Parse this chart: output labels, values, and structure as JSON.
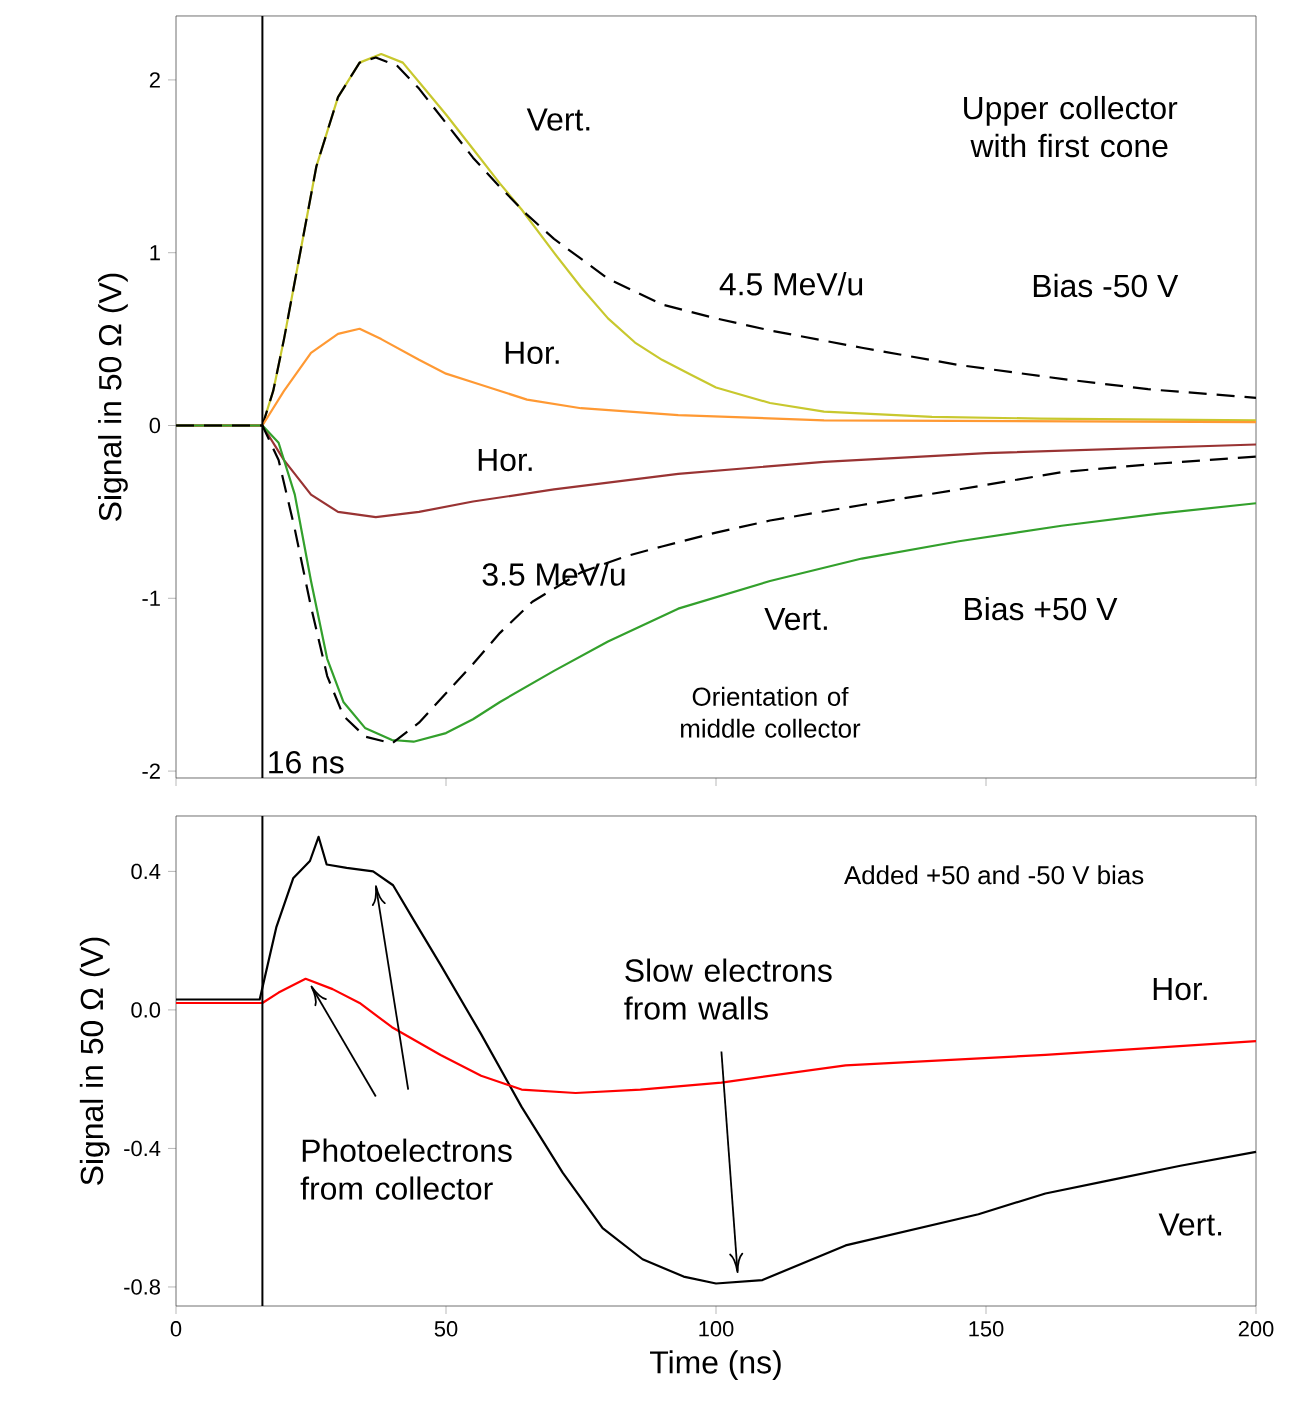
{
  "chart_data": [
    {
      "type": "line",
      "ylabel": "Signal in 50 Ω (V)",
      "xlim": [
        0,
        200
      ],
      "ylim": [
        -2.04,
        2.37
      ],
      "xticks": [
        0,
        50,
        100,
        150,
        200
      ],
      "yticks": [
        -2,
        -1,
        0,
        1,
        2
      ],
      "tick_labels": "y",
      "grid": false,
      "x": [
        0,
        16,
        18,
        20,
        23,
        26,
        30,
        34,
        38,
        42,
        46,
        50,
        55,
        60,
        64,
        70,
        75,
        80,
        85,
        90,
        95,
        100,
        110,
        120,
        140,
        160,
        200
      ],
      "series": [
        {
          "color": "#c8c82e",
          "line_style": "solid",
          "values": [
            0,
            0,
            0.2,
            0.5,
            1.0,
            1.5,
            1.9,
            2.1,
            2.15,
            2.1,
            1.95,
            1.8,
            1.6,
            1.4,
            1.25,
            1.0,
            0.8,
            0.62,
            0.48,
            0.38,
            0.3,
            0.22,
            0.13,
            0.08,
            0.05,
            0.04,
            0.03
          ]
        },
        {
          "color": "#000000",
          "line_style": "dashed",
          "x": [
            0,
            16,
            18,
            20,
            23,
            26,
            30,
            34,
            37,
            41,
            45,
            50,
            55,
            60,
            65,
            70,
            80,
            90,
            100,
            110,
            127,
            145,
            164,
            180,
            200
          ],
          "values": [
            0,
            0,
            0.2,
            0.5,
            1.0,
            1.5,
            1.9,
            2.1,
            2.13,
            2.08,
            1.95,
            1.75,
            1.55,
            1.38,
            1.22,
            1.08,
            0.85,
            0.7,
            0.62,
            0.55,
            0.45,
            0.35,
            0.27,
            0.21,
            0.16
          ]
        },
        {
          "color": "#ff9933",
          "line_style": "solid",
          "x": [
            0,
            16,
            20,
            25,
            30,
            34,
            38,
            45,
            50,
            56,
            65,
            75,
            93,
            120,
            200
          ],
          "values": [
            0,
            0,
            0.2,
            0.42,
            0.53,
            0.56,
            0.5,
            0.38,
            0.3,
            0.24,
            0.15,
            0.1,
            0.06,
            0.03,
            0.02
          ]
        },
        {
          "color": "#993333",
          "line_style": "solid",
          "x": [
            0,
            16,
            20,
            25,
            30,
            37,
            45,
            55,
            70,
            93,
            120,
            150,
            200
          ],
          "values": [
            0,
            0,
            -0.2,
            -0.4,
            -0.5,
            -0.53,
            -0.5,
            -0.44,
            -0.37,
            -0.28,
            -0.21,
            -0.16,
            -0.11
          ]
        },
        {
          "color": "#33a02c",
          "line_style": "solid",
          "x": [
            0,
            16,
            19,
            22,
            25,
            28,
            31,
            35,
            40,
            44,
            50,
            55,
            60,
            70,
            80,
            93,
            110,
            127,
            145,
            164,
            182,
            200
          ],
          "values": [
            0,
            0,
            -0.1,
            -0.4,
            -0.9,
            -1.35,
            -1.6,
            -1.75,
            -1.82,
            -1.83,
            -1.78,
            -1.7,
            -1.6,
            -1.42,
            -1.25,
            -1.06,
            -0.9,
            -0.77,
            -0.67,
            -0.58,
            -0.51,
            -0.45
          ]
        },
        {
          "color": "#000000",
          "line_style": "dashed",
          "x": [
            0,
            16,
            19,
            22,
            25,
            28,
            31,
            35,
            40,
            45,
            50,
            55,
            60,
            66,
            75,
            83,
            90,
            100,
            110,
            127,
            145,
            164,
            182,
            200
          ],
          "values": [
            0,
            0,
            -0.2,
            -0.6,
            -1.05,
            -1.45,
            -1.68,
            -1.8,
            -1.84,
            -1.72,
            -1.55,
            -1.38,
            -1.2,
            -1.02,
            -0.85,
            -0.76,
            -0.7,
            -0.62,
            -0.55,
            -0.46,
            -0.37,
            -0.27,
            -0.22,
            -0.18
          ]
        }
      ],
      "ref_lines": [
        {
          "axis": "x",
          "value": 16,
          "label": "16 ns"
        }
      ],
      "annotations": [
        "Vert.",
        "Hor.",
        "4.5 MeV/u",
        "Hor.",
        "3.5 MeV/u",
        "Vert.",
        "Upper collector with first cone",
        "Bias -50 V",
        "Bias +50 V",
        "Orientation of middle collector"
      ]
    },
    {
      "type": "line",
      "xlabel": "Time (ns)",
      "ylabel": "Signal in 50 Ω (V)",
      "xlim": [
        0,
        200
      ],
      "ylim": [
        -0.855,
        0.56
      ],
      "xticks": [
        0,
        50,
        100,
        150,
        200
      ],
      "yticks": [
        -0.8,
        -0.4,
        {
          "value": 0,
          "label": "0.0"
        },
        0.4
      ],
      "grid": false,
      "series": [
        {
          "color": "#000000",
          "x": [
            0,
            15.5,
            18.6,
            21.7,
            24.8,
            26.4,
            27.9,
            31.6,
            36.5,
            40.2,
            44,
            49,
            56.5,
            64,
            71.6,
            79,
            86.4,
            94,
            100,
            108.6,
            124,
            148.6,
            161,
            173.5,
            186,
            200
          ],
          "values": [
            0.03,
            0.03,
            0.24,
            0.38,
            0.43,
            0.5,
            0.42,
            0.41,
            0.4,
            0.36,
            0.26,
            0.13,
            -0.07,
            -0.28,
            -0.47,
            -0.63,
            -0.72,
            -0.77,
            -0.79,
            -0.78,
            -0.68,
            -0.59,
            -0.53,
            -0.49,
            -0.45,
            -0.41
          ]
        },
        {
          "color": "#ff0000",
          "x": [
            0,
            16,
            19,
            24,
            29,
            34,
            40,
            49,
            56.5,
            64,
            74,
            86,
            101,
            124,
            161,
            200
          ],
          "values": [
            0.02,
            0.02,
            0.05,
            0.09,
            0.06,
            0.02,
            -0.05,
            -0.13,
            -0.19,
            -0.23,
            -0.24,
            -0.23,
            -0.21,
            -0.16,
            -0.13,
            -0.09
          ]
        }
      ],
      "ref_lines": [
        {
          "axis": "x",
          "value": 16
        }
      ],
      "annotations": [
        "Added +50 and -50 V bias",
        "Hor.",
        "Vert.",
        "Photoelectrons from collector",
        "Slow electrons from walls"
      ]
    }
  ]
}
